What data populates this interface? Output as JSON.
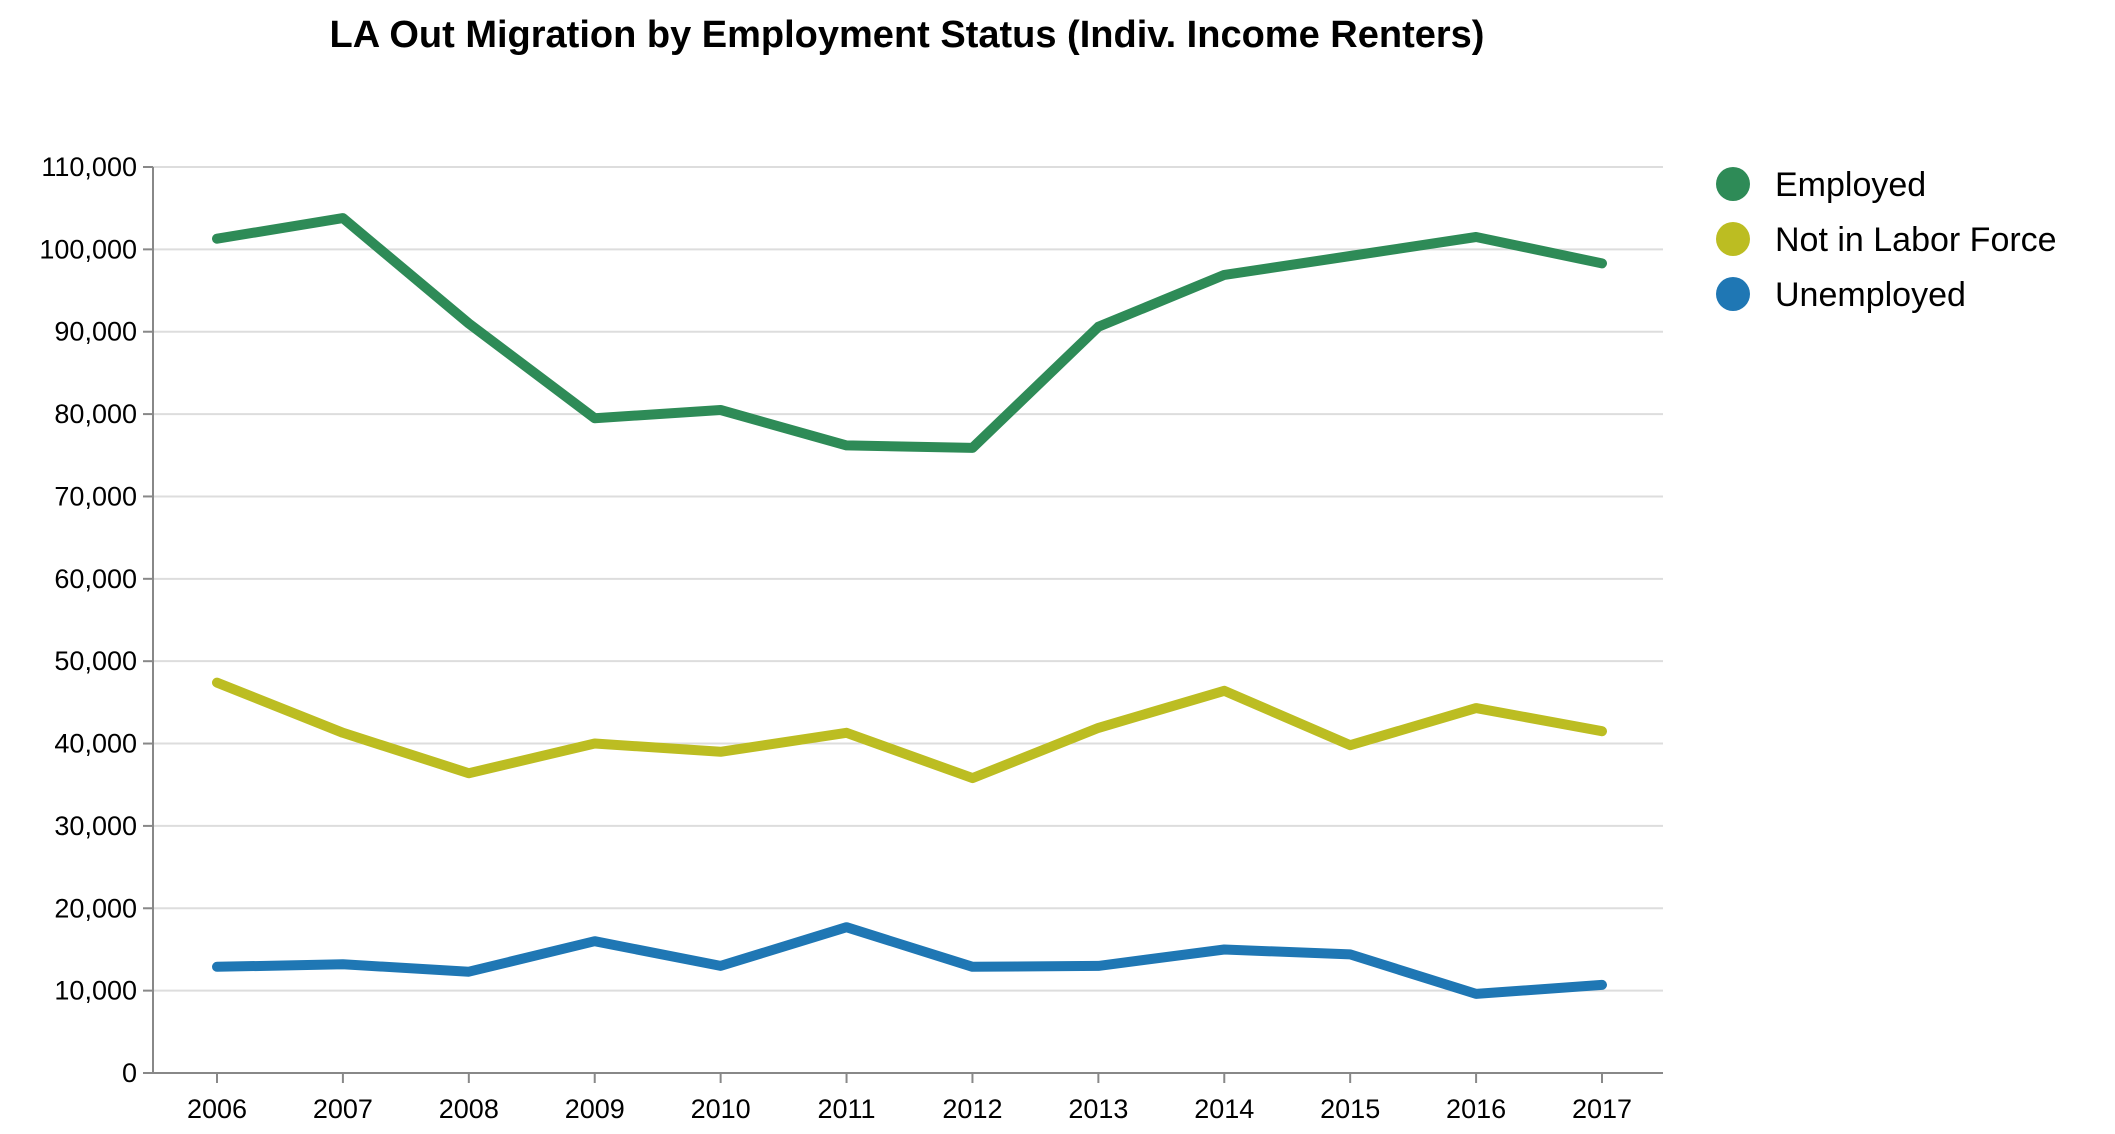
{
  "chart_data": {
    "type": "line",
    "title": "LA Out Migration by Employment Status (Indiv. Income Renters)",
    "xlabel": "",
    "ylabel": "",
    "x": [
      "2006",
      "2007",
      "2008",
      "2009",
      "2010",
      "2011",
      "2012",
      "2013",
      "2014",
      "2015",
      "2016",
      "2017"
    ],
    "ylim": [
      0,
      110000
    ],
    "yticks": [
      0,
      10000,
      20000,
      30000,
      40000,
      50000,
      60000,
      70000,
      80000,
      90000,
      100000,
      110000
    ],
    "ytick_labels": [
      "0",
      "10,000",
      "20,000",
      "30,000",
      "40,000",
      "50,000",
      "60,000",
      "70,000",
      "80,000",
      "90,000",
      "100,000",
      "110,000"
    ],
    "grid": true,
    "legend_position": "top-right",
    "series": [
      {
        "name": "Employed",
        "color": "#2e8b57",
        "values": [
          101300,
          103800,
          91000,
          79500,
          80500,
          76200,
          75900,
          90600,
          96900,
          99200,
          101500,
          98300
        ]
      },
      {
        "name": "Not in Labor Force",
        "color": "#bcbd22",
        "values": [
          47400,
          41300,
          36400,
          40000,
          39000,
          41300,
          35800,
          41900,
          46400,
          39800,
          44300,
          41500
        ]
      },
      {
        "name": "Unemployed",
        "color": "#1f77b4",
        "values": [
          12900,
          13200,
          12300,
          16000,
          13000,
          17700,
          12900,
          13000,
          15000,
          14400,
          9600,
          10700
        ]
      }
    ]
  }
}
